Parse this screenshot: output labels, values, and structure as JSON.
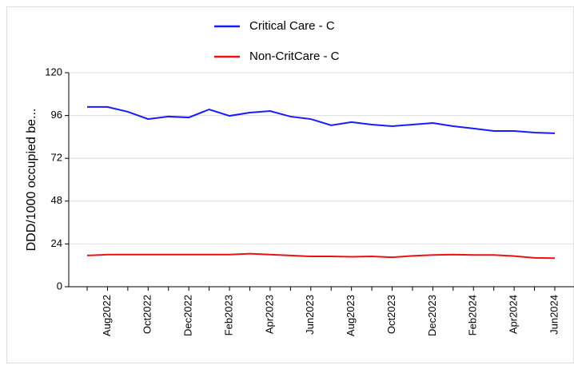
{
  "chart_data": {
    "type": "line",
    "ylabel": "DDD/1000  occupied  be...",
    "categories": [
      null,
      "Aug2022",
      null,
      "Oct2022",
      null,
      "Dec2022",
      null,
      "Feb2023",
      null,
      "Apr2023",
      null,
      "Jun2023",
      null,
      "Aug2023",
      null,
      "Oct2023",
      null,
      "Dec2023",
      null,
      "Feb2024",
      null,
      "Apr2024",
      null,
      "Jun2024"
    ],
    "series": [
      {
        "name": "Critical Care - C",
        "color": "#1a1aff",
        "values": [
          100.8,
          100.8,
          98.1,
          94.0,
          95.4,
          94.9,
          99.4,
          95.8,
          97.6,
          98.5,
          95.4,
          94.0,
          90.5,
          92.3,
          90.9,
          90.0,
          90.9,
          91.8,
          90.0,
          88.7,
          87.3,
          87.3,
          86.4,
          86.0
        ]
      },
      {
        "name": "Non-CritCare - C",
        "color": "#ee1111",
        "values": [
          17.5,
          18,
          18,
          18,
          18,
          18,
          18,
          18,
          18.5,
          18,
          17.5,
          17,
          17,
          16.8,
          17,
          16.5,
          17.3,
          17.8,
          18,
          17.8,
          17.8,
          17.2,
          16.2,
          16.0
        ]
      }
    ],
    "ylim": [
      0,
      120
    ],
    "yticks": [
      0,
      24,
      48,
      72,
      96,
      120
    ],
    "grid": true
  }
}
